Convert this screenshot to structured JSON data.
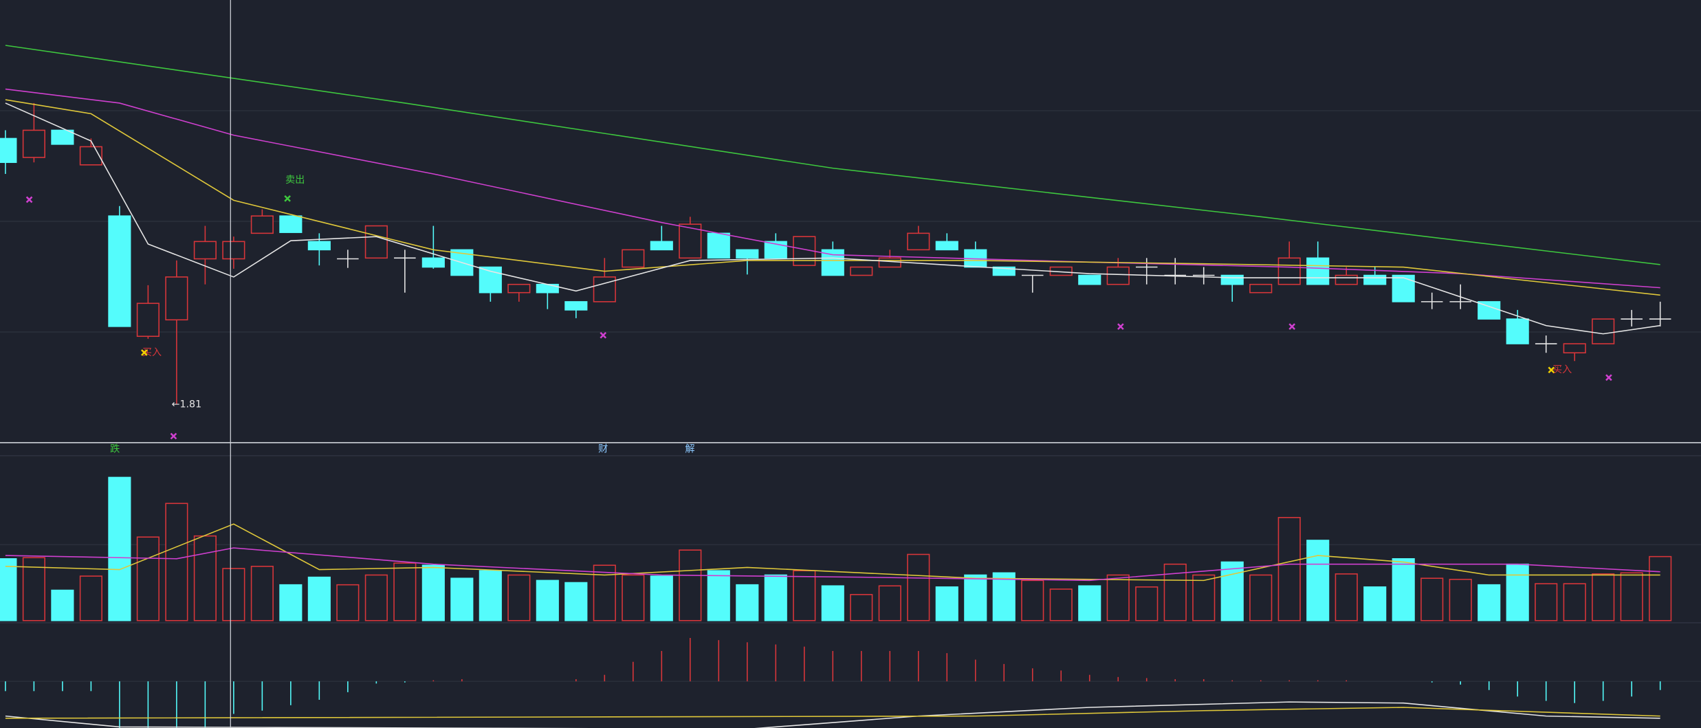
{
  "chart_data": [
    {
      "type": "candlestick",
      "open": [
        2.132,
        2.109,
        2.142,
        2.1,
        2.038,
        1.892,
        1.912,
        1.986,
        1.986,
        2.017,
        2.038,
        2.007,
        1.986,
        1.987,
        1.987,
        1.987,
        1.997,
        1.976,
        1.945,
        1.955,
        1.934,
        1.934,
        1.976,
        2.007,
        1.987,
        2.017,
        1.997,
        2.007,
        1.978,
        1.997,
        1.966,
        1.976,
        1.997,
        2.007,
        1.997,
        1.976,
        1.966,
        1.966,
        1.966,
        1.955,
        1.976,
        1.966,
        1.966,
        1.966,
        1.945,
        1.955,
        1.987,
        1.955,
        1.966,
        1.966,
        1.934,
        1.934,
        1.934,
        1.913,
        1.883,
        1.872,
        1.883,
        1.913,
        1.913
      ],
      "high": [
        2.142,
        2.175,
        2.142,
        2.132,
        2.05,
        1.954,
        1.984,
        2.026,
        2.013,
        2.046,
        2.038,
        2.017,
        1.997,
        2.026,
        1.997,
        2.026,
        1.997,
        1.976,
        1.955,
        1.955,
        1.934,
        1.987,
        1.997,
        2.026,
        2.037,
        2.017,
        1.997,
        2.017,
        2.013,
        2.007,
        1.976,
        1.997,
        2.026,
        2.017,
        2.007,
        1.976,
        1.966,
        1.976,
        1.966,
        1.987,
        1.987,
        1.987,
        1.976,
        1.966,
        1.955,
        2.007,
        2.007,
        1.976,
        1.976,
        1.966,
        1.945,
        1.955,
        1.934,
        1.924,
        1.893,
        1.883,
        1.913,
        1.924,
        1.934
      ],
      "low": [
        2.089,
        2.103,
        2.125,
        2.1,
        1.904,
        1.889,
        1.81,
        1.955,
        1.974,
        2.017,
        2.018,
        1.978,
        1.975,
        1.987,
        1.945,
        1.974,
        1.966,
        1.934,
        1.934,
        1.925,
        1.914,
        1.934,
        1.976,
        1.997,
        1.987,
        1.987,
        1.967,
        1.987,
        1.978,
        1.966,
        1.966,
        1.976,
        1.997,
        1.997,
        1.976,
        1.966,
        1.945,
        1.966,
        1.955,
        1.955,
        1.955,
        1.955,
        1.955,
        1.934,
        1.945,
        1.955,
        1.955,
        1.955,
        1.955,
        1.934,
        1.925,
        1.925,
        1.913,
        1.883,
        1.872,
        1.862,
        1.883,
        1.904,
        1.904
      ],
      "close": [
        2.103,
        2.142,
        2.125,
        2.122,
        1.904,
        1.932,
        1.964,
        2.007,
        2.007,
        2.038,
        2.018,
        1.997,
        1.986,
        2.026,
        1.987,
        1.976,
        1.966,
        1.945,
        1.955,
        1.945,
        1.924,
        1.964,
        1.997,
        1.997,
        2.028,
        1.987,
        1.987,
        1.987,
        2.013,
        1.966,
        1.976,
        1.987,
        2.017,
        1.997,
        1.976,
        1.966,
        1.966,
        1.976,
        1.955,
        1.976,
        1.976,
        1.966,
        1.966,
        1.955,
        1.955,
        1.987,
        1.955,
        1.966,
        1.955,
        1.934,
        1.934,
        1.934,
        1.913,
        1.883,
        1.883,
        1.883,
        1.913,
        1.913,
        1.913
      ],
      "ylim": [
        1.763,
        2.3
      ],
      "up_color": "#d8363a",
      "down_color": "#54fcfc",
      "doji_color": "#e6e6e6",
      "series": [
        {
          "color": "#3ec83e",
          "x": [
            0,
            14,
            29,
            44,
            58
          ],
          "values": [
            2.245,
            2.175,
            2.096,
            2.037,
            1.979
          ]
        },
        {
          "color": "#d040d0",
          "x": [
            0,
            4,
            8,
            15,
            23,
            29,
            38,
            45,
            51,
            58
          ],
          "values": [
            2.192,
            2.175,
            2.136,
            2.089,
            2.03,
            1.991,
            1.982,
            1.976,
            1.968,
            1.951
          ]
        },
        {
          "color": "#e0c83a",
          "x": [
            0,
            3,
            8,
            15,
            21,
            26,
            34,
            42,
            49,
            58
          ],
          "values": [
            2.179,
            2.162,
            2.057,
            1.997,
            1.971,
            1.984,
            1.984,
            1.98,
            1.976,
            1.942
          ]
        },
        {
          "color": "#e6e6e6",
          "x": [
            0,
            3,
            5,
            8,
            10,
            13,
            17,
            20,
            24,
            29,
            38,
            43,
            49,
            54,
            56,
            58
          ],
          "values": [
            2.175,
            2.129,
            2.004,
            1.964,
            2.008,
            2.013,
            1.971,
            1.947,
            1.984,
            1.987,
            1.968,
            1.963,
            1.963,
            1.905,
            1.895,
            1.905
          ]
        }
      ],
      "annotations": [
        "卖出",
        "买入",
        "买入",
        "←1.81"
      ],
      "event_marks": [
        "跌",
        "财",
        "解"
      ]
    },
    {
      "type": "volume",
      "values": [
        57,
        58,
        28,
        41,
        132,
        77,
        108,
        78,
        48,
        50,
        33,
        40,
        33,
        42,
        53,
        51,
        39,
        46,
        42,
        37,
        35,
        51,
        42,
        41,
        65,
        46,
        33,
        42,
        46,
        32,
        24,
        32,
        61,
        31,
        42,
        44,
        37,
        29,
        32,
        42,
        31,
        52,
        42,
        54,
        42,
        95,
        74,
        43,
        31,
        57,
        39,
        38,
        33,
        52,
        34,
        34,
        43,
        44,
        59
      ],
      "ylim": [
        0,
        140
      ],
      "series": [
        {
          "color": "#e0c83a",
          "x": [
            0,
            4,
            8,
            11,
            15,
            21,
            26,
            34,
            42,
            46,
            49,
            52,
            58
          ],
          "values": [
            50,
            47,
            89,
            47,
            49,
            42,
            49,
            39,
            37,
            60,
            54,
            42,
            42
          ]
        },
        {
          "color": "#d040d0",
          "x": [
            0,
            6,
            8,
            15,
            23,
            30,
            38,
            45,
            53,
            58
          ],
          "values": [
            60,
            57,
            67,
            52,
            42,
            40,
            37,
            52,
            52,
            45
          ]
        }
      ]
    },
    {
      "type": "macd",
      "values": [
        -9,
        -9,
        -9,
        -9,
        -43,
        -43,
        -43,
        -43,
        -30,
        -27,
        -22,
        -17,
        -10,
        -2,
        -1,
        1,
        2,
        0,
        0,
        0,
        2,
        6,
        18,
        28,
        40,
        38,
        36,
        34,
        32,
        28,
        28,
        28,
        28,
        26,
        20,
        16,
        12,
        10,
        6,
        4,
        3,
        2,
        2,
        1,
        1,
        1,
        1,
        1,
        0,
        0,
        -1,
        -3,
        -8,
        -14,
        -18,
        -20,
        -18,
        -14,
        -8
      ],
      "ylim": [
        -43,
        53
      ],
      "up_color": "#d8363a",
      "down_color": "#54fcfc",
      "series": [
        {
          "color": "#e6e6e6",
          "x": [
            0,
            4,
            26,
            32,
            38,
            45,
            49,
            54,
            58
          ],
          "values": [
            -32,
            -42,
            -44,
            -32,
            -24,
            -19,
            -20,
            -32,
            -34
          ]
        },
        {
          "color": "#e0c83a",
          "x": [
            0,
            34,
            42,
            49,
            58
          ],
          "values": [
            -34,
            -32,
            -27,
            -24,
            -32
          ]
        }
      ]
    }
  ]
}
